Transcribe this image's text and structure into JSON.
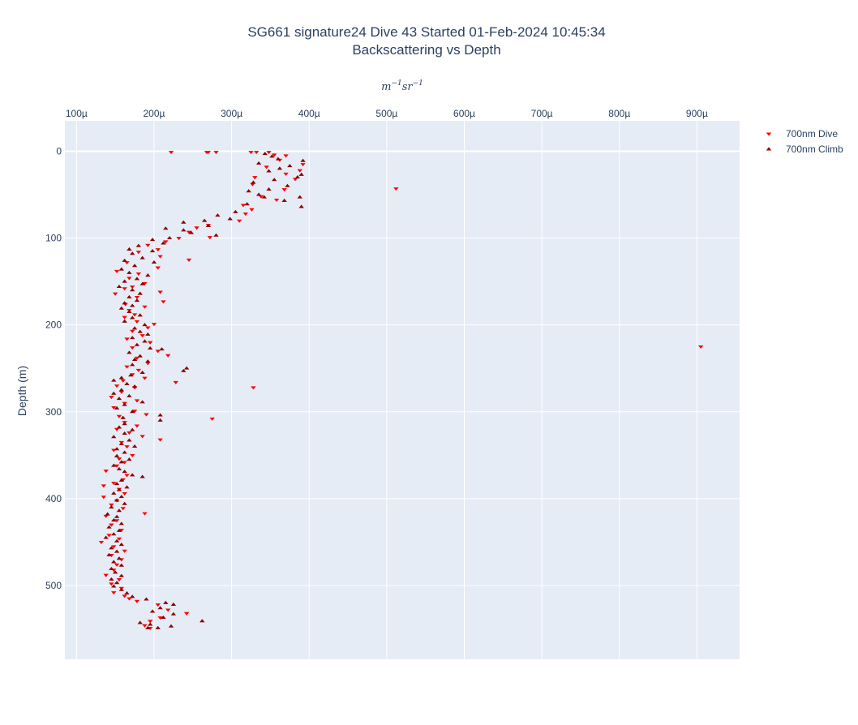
{
  "chart_data": {
    "type": "scatter",
    "title": "SG661 signature24 Dive 43 Started 01-Feb-2024 10:45:34",
    "subtitle": "Backscattering vs Depth",
    "xlabel": "m^{-1}sr^{-1}",
    "ylabel": "Depth (m)",
    "xlim": [
      8.5e-05,
      0.000955
    ],
    "ylim": [
      585,
      -35
    ],
    "x_axis_position": "top",
    "x_ticks": [
      0.0001,
      0.0002,
      0.0003,
      0.0004,
      0.0005,
      0.0006,
      0.0007,
      0.0008,
      0.0009
    ],
    "x_tick_labels": [
      "100µ",
      "200µ",
      "300µ",
      "400µ",
      "500µ",
      "600µ",
      "700µ",
      "800µ",
      "900µ"
    ],
    "y_ticks": [
      0,
      100,
      200,
      300,
      400,
      500
    ],
    "y_tick_labels": [
      "0",
      "100",
      "200",
      "300",
      "400",
      "500"
    ],
    "grid": true,
    "legend_position": "top-right",
    "series": [
      {
        "name": "700nm Dive",
        "marker": "triangle-down",
        "color": "#ff0000",
        "points": [
          [
            0.000222,
            1
          ],
          [
            0.000268,
            1
          ],
          [
            0.00027,
            1
          ],
          [
            0.00028,
            1
          ],
          [
            0.000325,
            1
          ],
          [
            0.000332,
            1
          ],
          [
            0.000348,
            1
          ],
          [
            0.000355,
            4
          ],
          [
            0.00037,
            5
          ],
          [
            0.000362,
            10
          ],
          [
            0.000392,
            15
          ],
          [
            0.000345,
            18
          ],
          [
            0.000388,
            22
          ],
          [
            0.00037,
            26
          ],
          [
            0.00033,
            30
          ],
          [
            0.000382,
            32
          ],
          [
            0.000327,
            38
          ],
          [
            0.000368,
            44
          ],
          [
            0.000512,
            43
          ],
          [
            0.000338,
            52
          ],
          [
            0.000358,
            56
          ],
          [
            0.000315,
            62
          ],
          [
            0.000326,
            67
          ],
          [
            0.000318,
            72
          ],
          [
            0.00031,
            80
          ],
          [
            0.00027,
            85
          ],
          [
            0.000255,
            88
          ],
          [
            0.000245,
            93
          ],
          [
            0.000272,
            99
          ],
          [
            0.000232,
            100
          ],
          [
            0.000215,
            104
          ],
          [
            0.000192,
            108
          ],
          [
            0.000205,
            113
          ],
          [
            0.00018,
            116
          ],
          [
            0.000208,
            121
          ],
          [
            0.000245,
            125
          ],
          [
            0.000165,
            128
          ],
          [
            0.000205,
            134
          ],
          [
            0.000152,
            138
          ],
          [
            0.00018,
            141
          ],
          [
            0.000168,
            146
          ],
          [
            0.000188,
            152
          ],
          [
            0.000172,
            156
          ],
          [
            0.000162,
            158
          ],
          [
            0.000208,
            162
          ],
          [
            0.00015,
            164
          ],
          [
            0.000178,
            168
          ],
          [
            0.000212,
            173
          ],
          [
            0.000163,
            176
          ],
          [
            0.000188,
            179
          ],
          [
            0.000168,
            183
          ],
          [
            0.000175,
            188
          ],
          [
            0.000162,
            191
          ],
          [
            0.000178,
            196
          ],
          [
            0.0002,
            199
          ],
          [
            0.000192,
            203
          ],
          [
            0.000172,
            207
          ],
          [
            0.000185,
            212
          ],
          [
            0.000165,
            216
          ],
          [
            0.000195,
            220
          ],
          [
            0.000905,
            225
          ],
          [
            0.000172,
            226
          ],
          [
            0.000205,
            230
          ],
          [
            0.000218,
            235
          ],
          [
            0.000178,
            238
          ],
          [
            0.000192,
            244
          ],
          [
            0.000165,
            248
          ],
          [
            0.00018,
            252
          ],
          [
            0.000172,
            257
          ],
          [
            0.000188,
            261
          ],
          [
            0.00016,
            264
          ],
          [
            0.000228,
            266
          ],
          [
            0.000152,
            270
          ],
          [
            0.000175,
            272
          ],
          [
            0.000328,
            272
          ],
          [
            0.000158,
            277
          ],
          [
            0.000145,
            283
          ],
          [
            0.000178,
            287
          ],
          [
            0.000162,
            290
          ],
          [
            0.000148,
            295
          ],
          [
            0.000175,
            299
          ],
          [
            0.00019,
            303
          ],
          [
            0.000155,
            305
          ],
          [
            0.000275,
            308
          ],
          [
            0.000162,
            312
          ],
          [
            0.000178,
            316
          ],
          [
            0.000152,
            320
          ],
          [
            0.000168,
            324
          ],
          [
            0.000185,
            328
          ],
          [
            0.000208,
            332
          ],
          [
            0.000158,
            335
          ],
          [
            0.000165,
            340
          ],
          [
            0.000148,
            344
          ],
          [
            0.000172,
            350
          ],
          [
            0.000155,
            354
          ],
          [
            0.000162,
            358
          ],
          [
            0.000152,
            362
          ],
          [
            0.000138,
            368
          ],
          [
            0.000165,
            373
          ],
          [
            0.00016,
            378
          ],
          [
            0.000148,
            382
          ],
          [
            0.000135,
            385
          ],
          [
            0.000155,
            389
          ],
          [
            0.000162,
            394
          ],
          [
            0.000135,
            398
          ],
          [
            0.000152,
            402
          ],
          [
            0.000145,
            407
          ],
          [
            0.00016,
            411
          ],
          [
            0.000188,
            417
          ],
          [
            0.000138,
            420
          ],
          [
            0.000152,
            425
          ],
          [
            0.000145,
            430
          ],
          [
            0.000158,
            436
          ],
          [
            0.000142,
            442
          ],
          [
            0.000155,
            446
          ],
          [
            0.000132,
            450
          ],
          [
            0.000148,
            455
          ],
          [
            0.000162,
            460
          ],
          [
            0.000145,
            465
          ],
          [
            0.000158,
            470
          ],
          [
            0.000152,
            476
          ],
          [
            0.000148,
            482
          ],
          [
            0.000138,
            488
          ],
          [
            0.000155,
            493
          ],
          [
            0.000145,
            498
          ],
          [
            0.000158,
            503
          ],
          [
            0.000148,
            508
          ],
          [
            0.000162,
            512
          ],
          [
            0.000168,
            515
          ],
          [
            0.000178,
            518
          ],
          [
            0.000205,
            522
          ],
          [
            0.000218,
            528
          ],
          [
            0.000242,
            532
          ],
          [
            0.000208,
            537
          ],
          [
            0.000195,
            541
          ],
          [
            0.000188,
            546
          ],
          [
            0.000195,
            549
          ]
        ]
      },
      {
        "name": "700nm Climb",
        "marker": "triangle-up",
        "color": "#8b0000",
        "points": [
          [
            0.000343,
            3
          ],
          [
            0.000352,
            6
          ],
          [
            0.00036,
            9
          ],
          [
            0.000392,
            11
          ],
          [
            0.000335,
            14
          ],
          [
            0.000375,
            17
          ],
          [
            0.000362,
            20
          ],
          [
            0.000348,
            23
          ],
          [
            0.00039,
            27
          ],
          [
            0.000385,
            30
          ],
          [
            0.000355,
            33
          ],
          [
            0.000328,
            36
          ],
          [
            0.000372,
            40
          ],
          [
            0.000348,
            44
          ],
          [
            0.000322,
            46
          ],
          [
            0.000335,
            50
          ],
          [
            0.000342,
            53
          ],
          [
            0.000388,
            53
          ],
          [
            0.000368,
            57
          ],
          [
            0.00032,
            61
          ],
          [
            0.00039,
            64
          ],
          [
            0.000305,
            70
          ],
          [
            0.000282,
            74
          ],
          [
            0.000298,
            78
          ],
          [
            0.000265,
            80
          ],
          [
            0.000238,
            82
          ],
          [
            0.00027,
            86
          ],
          [
            0.000215,
            89
          ],
          [
            0.000238,
            91
          ],
          [
            0.000248,
            94
          ],
          [
            0.00028,
            97
          ],
          [
            0.00022,
            100
          ],
          [
            0.000198,
            102
          ],
          [
            0.000212,
            106
          ],
          [
            0.00018,
            109
          ],
          [
            0.000168,
            113
          ],
          [
            0.000198,
            115
          ],
          [
            0.000172,
            118
          ],
          [
            0.000185,
            123
          ],
          [
            0.000162,
            126
          ],
          [
            0.0002,
            128
          ],
          [
            0.000175,
            132
          ],
          [
            0.000158,
            136
          ],
          [
            0.000168,
            140
          ],
          [
            0.000192,
            143
          ],
          [
            0.000178,
            147
          ],
          [
            0.000162,
            150
          ],
          [
            0.000185,
            153
          ],
          [
            0.000155,
            156
          ],
          [
            0.000172,
            160
          ],
          [
            0.000182,
            164
          ],
          [
            0.000168,
            168
          ],
          [
            0.000178,
            172
          ],
          [
            0.000162,
            175
          ],
          [
            0.000172,
            178
          ],
          [
            0.000158,
            181
          ],
          [
            0.000168,
            185
          ],
          [
            0.000182,
            189
          ],
          [
            0.000172,
            192
          ],
          [
            0.000162,
            196
          ],
          [
            0.000188,
            200
          ],
          [
            0.000175,
            204
          ],
          [
            0.000182,
            208
          ],
          [
            0.000192,
            211
          ],
          [
            0.000172,
            215
          ],
          [
            0.000188,
            219
          ],
          [
            0.000178,
            223
          ],
          [
            0.000195,
            227
          ],
          [
            0.00021,
            228
          ],
          [
            0.000168,
            232
          ],
          [
            0.000182,
            236
          ],
          [
            0.000175,
            240
          ],
          [
            0.000192,
            242
          ],
          [
            0.000172,
            246
          ],
          [
            0.000242,
            250
          ],
          [
            0.000238,
            253
          ],
          [
            0.000185,
            255
          ],
          [
            0.00017,
            258
          ],
          [
            0.000158,
            261
          ],
          [
            0.000148,
            264
          ],
          [
            0.000165,
            268
          ],
          [
            0.000175,
            271
          ],
          [
            0.000158,
            275
          ],
          [
            0.000148,
            279
          ],
          [
            0.000168,
            282
          ],
          [
            0.000155,
            285
          ],
          [
            0.000185,
            289
          ],
          [
            0.000162,
            292
          ],
          [
            0.000152,
            296
          ],
          [
            0.000172,
            300
          ],
          [
            0.000208,
            304
          ],
          [
            0.00016,
            307
          ],
          [
            0.000208,
            310
          ],
          [
            0.000162,
            314
          ],
          [
            0.000155,
            318
          ],
          [
            0.000172,
            321
          ],
          [
            0.000162,
            325
          ],
          [
            0.000148,
            329
          ],
          [
            0.000168,
            333
          ],
          [
            0.000158,
            337
          ],
          [
            0.000175,
            340
          ],
          [
            0.000152,
            343
          ],
          [
            0.000162,
            347
          ],
          [
            0.000152,
            351
          ],
          [
            0.000168,
            355
          ],
          [
            0.000158,
            358
          ],
          [
            0.000148,
            362
          ],
          [
            0.000155,
            366
          ],
          [
            0.000162,
            369
          ],
          [
            0.000172,
            373
          ],
          [
            0.000185,
            375
          ],
          [
            0.000158,
            379
          ],
          [
            0.000152,
            383
          ],
          [
            0.000165,
            387
          ],
          [
            0.000155,
            390
          ],
          [
            0.000148,
            394
          ],
          [
            0.000158,
            398
          ],
          [
            0.000152,
            402
          ],
          [
            0.000162,
            406
          ],
          [
            0.000145,
            410
          ],
          [
            0.000155,
            414
          ],
          [
            0.00014,
            418
          ],
          [
            0.000152,
            421
          ],
          [
            0.000148,
            425
          ],
          [
            0.000158,
            429
          ],
          [
            0.000142,
            433
          ],
          [
            0.000155,
            437
          ],
          [
            0.000148,
            441
          ],
          [
            0.000138,
            445
          ],
          [
            0.000152,
            449
          ],
          [
            0.000158,
            453
          ],
          [
            0.000145,
            457
          ],
          [
            0.000152,
            461
          ],
          [
            0.000142,
            465
          ],
          [
            0.000155,
            469
          ],
          [
            0.000148,
            473
          ],
          [
            0.000158,
            477
          ],
          [
            0.000145,
            481
          ],
          [
            0.00015,
            485
          ],
          [
            0.000158,
            489
          ],
          [
            0.000145,
            493
          ],
          [
            0.000152,
            497
          ],
          [
            0.000148,
            501
          ],
          [
            0.000158,
            505
          ],
          [
            0.000165,
            509
          ],
          [
            0.000172,
            513
          ],
          [
            0.00019,
            516
          ],
          [
            0.000215,
            520
          ],
          [
            0.000225,
            522
          ],
          [
            0.000208,
            526
          ],
          [
            0.000198,
            530
          ],
          [
            0.000225,
            533
          ],
          [
            0.000212,
            537
          ],
          [
            0.000262,
            541
          ],
          [
            0.000182,
            543
          ],
          [
            0.000195,
            545
          ],
          [
            0.000222,
            547
          ],
          [
            0.000205,
            549
          ],
          [
            0.000192,
            549
          ]
        ]
      }
    ]
  }
}
